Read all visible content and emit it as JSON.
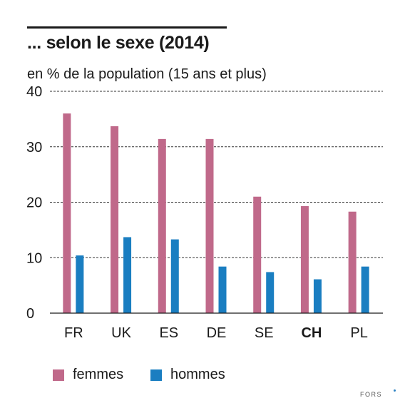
{
  "title": "... selon le sexe (2014)",
  "subtitle": "en % de la population (15 ans et plus)",
  "credit": "FORS",
  "chart_data": {
    "type": "bar",
    "categories": [
      "FR",
      "UK",
      "ES",
      "DE",
      "SE",
      "CH",
      "PL"
    ],
    "highlight_category": "CH",
    "series": [
      {
        "name": "femmes",
        "color": "#c0698a",
        "values": [
          36.0,
          33.7,
          31.4,
          31.4,
          21.0,
          19.3,
          18.3
        ]
      },
      {
        "name": "hommes",
        "color": "#1a7ec1",
        "values": [
          10.4,
          13.7,
          13.3,
          8.4,
          7.4,
          6.1,
          8.4
        ]
      }
    ],
    "yticks": [
      0,
      10,
      20,
      30,
      40
    ],
    "ylim": [
      0,
      40
    ],
    "grid": true,
    "legend_position": "bottom-left"
  }
}
